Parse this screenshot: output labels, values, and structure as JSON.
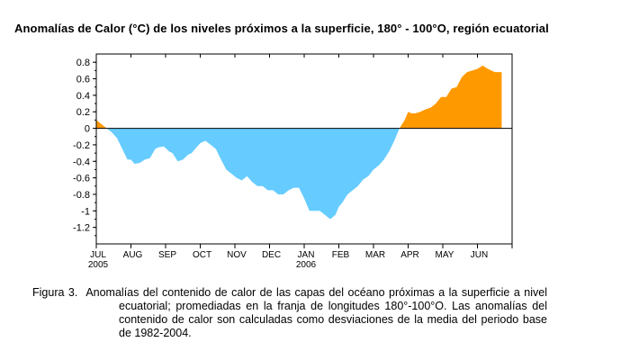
{
  "chart_data": {
    "type": "area",
    "title": "Anomalías de Calor (°C) de los niveles próximos a la superficie,  180° - 100°O, región ecuatorial",
    "xlabel": "",
    "ylabel": "",
    "ylim": [
      -1.4,
      0.9
    ],
    "y_ticks": [
      0.8,
      0.6,
      0.4,
      0.2,
      0,
      -0.2,
      -0.4,
      -0.6,
      -0.8,
      -1,
      -1.2
    ],
    "y_tick_labels": [
      "0.8",
      "0.6",
      "0.4",
      "0.2",
      "0",
      "-0.2",
      "-0.4",
      "-0.6",
      "-0.8",
      "-1",
      "-1.2"
    ],
    "x_tick_labels": [
      "JUL",
      "AUG",
      "SEP",
      "OCT",
      "NOV",
      "DEC",
      "JAN",
      "FEB",
      "MAR",
      "APR",
      "MAY",
      "JUN"
    ],
    "x_year_labels": [
      {
        "month_index": 0,
        "label": "2005"
      },
      {
        "month_index": 6,
        "label": "2006"
      }
    ],
    "grid": false,
    "positive_color": "#ff9900",
    "negative_color": "#66ccff",
    "series": [
      {
        "x": [
          0.0,
          0.15,
          0.3,
          0.45,
          0.6,
          0.75,
          0.9,
          1.0,
          1.1,
          1.25,
          1.4,
          1.55,
          1.7,
          1.8,
          1.95,
          2.1,
          2.2,
          2.35,
          2.5,
          2.65,
          2.75,
          2.85,
          3.0,
          3.15,
          3.3,
          3.45,
          3.6,
          3.75,
          3.9,
          4.05,
          4.2,
          4.35,
          4.5,
          4.65,
          4.8,
          4.95,
          5.1,
          5.25,
          5.4,
          5.55,
          5.7,
          5.85,
          6.0,
          6.15,
          6.3,
          6.45,
          6.6,
          6.75,
          6.9,
          7.0,
          7.1,
          7.25,
          7.4,
          7.55,
          7.7,
          7.85,
          8.0,
          8.15,
          8.3,
          8.45,
          8.6,
          8.75,
          8.9,
          9.0,
          9.1,
          9.2,
          9.35,
          9.5,
          9.65,
          9.8,
          9.95,
          10.1,
          10.25,
          10.4,
          10.55,
          10.7,
          10.85,
          11.0,
          11.15,
          11.3,
          11.5,
          11.7
        ],
        "values": [
          0.1,
          0.05,
          0.0,
          -0.05,
          -0.12,
          -0.25,
          -0.38,
          -0.38,
          -0.43,
          -0.42,
          -0.38,
          -0.36,
          -0.25,
          -0.23,
          -0.22,
          -0.28,
          -0.3,
          -0.4,
          -0.38,
          -0.32,
          -0.3,
          -0.25,
          -0.18,
          -0.15,
          -0.2,
          -0.25,
          -0.38,
          -0.5,
          -0.55,
          -0.6,
          -0.63,
          -0.58,
          -0.65,
          -0.7,
          -0.7,
          -0.75,
          -0.75,
          -0.8,
          -0.8,
          -0.75,
          -0.72,
          -0.72,
          -0.85,
          -1.0,
          -1.0,
          -1.0,
          -1.05,
          -1.1,
          -1.05,
          -0.95,
          -0.9,
          -0.8,
          -0.75,
          -0.7,
          -0.62,
          -0.58,
          -0.5,
          -0.45,
          -0.38,
          -0.28,
          -0.15,
          0.0,
          0.1,
          0.2,
          0.18,
          0.18,
          0.2,
          0.23,
          0.25,
          0.3,
          0.38,
          0.38,
          0.48,
          0.5,
          0.62,
          0.68,
          0.7,
          0.72,
          0.76,
          0.72,
          0.68,
          0.68
        ]
      }
    ]
  },
  "caption": {
    "lead": "Figura 3.",
    "text": "Anomalías del contenido de calor de las capas del océano próximas a la superficie a nivel ecuatorial; promediadas en la franja de longitudes 180°-100°O. Las anomalías  del contenido de calor son calculadas como desviaciones de la media del periodo base de 1982-2004."
  }
}
